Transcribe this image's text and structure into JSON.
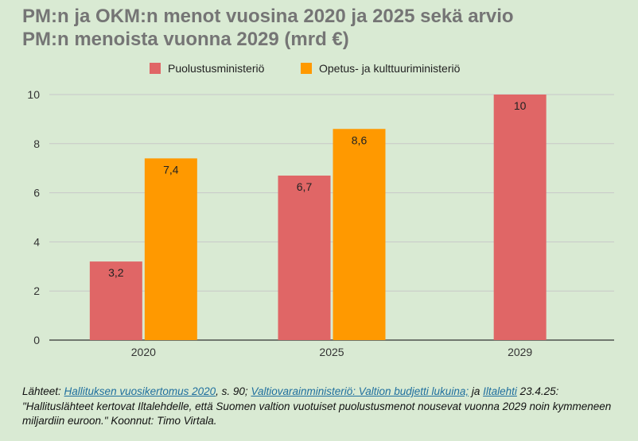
{
  "chart_data": {
    "type": "bar",
    "title": [
      "PM:n ja OKM:n menot vuosina 2020 ja 2025 sekä arvio",
      "PM:n menoista vuonna 2029 (mrd €)"
    ],
    "categories": [
      "2020",
      "2025",
      "2029"
    ],
    "series": [
      {
        "name": "Puolustusministeriö",
        "color": "#e06666",
        "values": [
          3.2,
          6.7,
          10
        ],
        "labels": [
          "3,2",
          "6,7",
          "10"
        ]
      },
      {
        "name": "Opetus- ja kulttuuriministeriö",
        "color": "#ff9900",
        "values": [
          7.4,
          8.6,
          null
        ],
        "labels": [
          "7,4",
          "8,6",
          ""
        ]
      }
    ],
    "yticks": [
      "0",
      "2",
      "4",
      "6",
      "8",
      "10"
    ],
    "ylim": [
      0,
      10
    ],
    "grid": true,
    "legend": "top"
  },
  "sources": {
    "prefix": "Lähteet: ",
    "link1": "Hallituksen vuosikertomus 2020",
    "text1": ", s. 90; ",
    "link2": "Valtiovarainministeriö: Valtion budjetti lukuina;",
    "text2": " ja ",
    "link3": "Iltalehti",
    "text3": " 23.4.25: \"Hallituslähteet kertovat Iltalehdelle, että Suomen valtion vuotuiset puolustusmenot nousevat vuonna 2029 noin kymmeneen miljardiin euroon.\" Koonnut: Timo Virtala."
  }
}
